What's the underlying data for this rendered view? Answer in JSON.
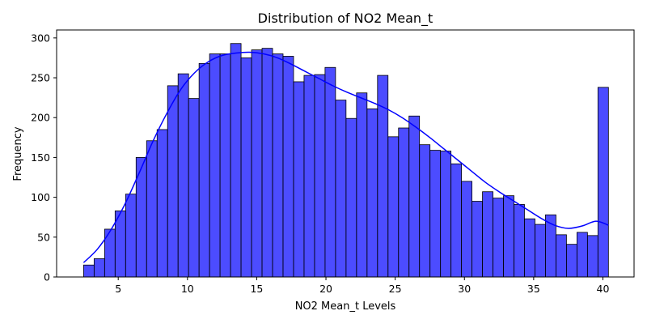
{
  "chart_data": {
    "type": "bar",
    "subtype": "histogram-with-kde",
    "title": "Distribution of NO2 Mean_t",
    "xlabel": "NO2 Mean_t Levels",
    "ylabel": "Frequency",
    "xlim": [
      0.55,
      42.25
    ],
    "ylim": [
      0,
      310
    ],
    "xticks": [
      "5",
      "10",
      "15",
      "20",
      "25",
      "30",
      "35",
      "40"
    ],
    "xtick_values": [
      5,
      10,
      15,
      20,
      25,
      30,
      35,
      40
    ],
    "yticks": [
      "0",
      "50",
      "100",
      "150",
      "200",
      "250",
      "300"
    ],
    "ytick_values": [
      0,
      50,
      100,
      150,
      200,
      250,
      300
    ],
    "grid": false,
    "bin_range": [
      2.5,
      40.4
    ],
    "values": [
      15,
      23,
      60,
      83,
      104,
      150,
      171,
      185,
      240,
      255,
      224,
      268,
      280,
      280,
      293,
      275,
      285,
      287,
      280,
      277,
      245,
      253,
      254,
      263,
      222,
      199,
      231,
      211,
      253,
      176,
      187,
      202,
      166,
      159,
      158,
      142,
      120,
      95,
      107,
      99,
      102,
      91,
      73,
      66,
      78,
      53,
      41,
      56,
      52,
      238
    ],
    "kde": {
      "x": [
        2.5,
        3.5,
        4.5,
        5.5,
        6.5,
        7.5,
        8.5,
        9.5,
        10.5,
        11.5,
        12.5,
        13.5,
        14.5,
        15.5,
        16.5,
        17.5,
        18.5,
        19.5,
        20.5,
        21.5,
        22.5,
        23.5,
        24.5,
        25.5,
        26.5,
        27.5,
        28.5,
        29.5,
        30.5,
        31.5,
        32.5,
        33.5,
        34.5,
        35.5,
        36.5,
        37.5,
        38.5,
        39.5,
        40.4
      ],
      "y": [
        18,
        35,
        60,
        92,
        130,
        170,
        205,
        235,
        256,
        270,
        278,
        281,
        282,
        280,
        275,
        267,
        258,
        249,
        240,
        232,
        225,
        218,
        210,
        200,
        188,
        175,
        161,
        147,
        133,
        119,
        107,
        96,
        85,
        74,
        65,
        61,
        64,
        70,
        65
      ]
    },
    "colors": {
      "bar_fill": "#0000ff",
      "bar_opacity": 0.7,
      "bar_edge": "#000000",
      "kde_line": "#0000ff"
    }
  }
}
